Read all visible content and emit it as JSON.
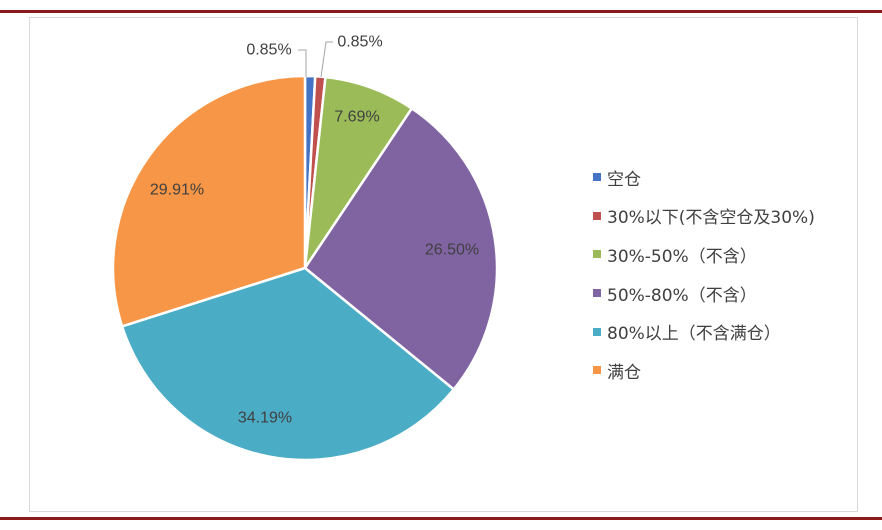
{
  "chart_data": {
    "type": "pie",
    "slices": [
      {
        "label": "空仓",
        "value": 0.85,
        "value_label": "0.85%",
        "color": "#4472c4"
      },
      {
        "label": "30%以下(不含空仓及30%)",
        "value": 0.85,
        "value_label": "0.85%",
        "color": "#c0504d"
      },
      {
        "label": "30%-50%（不含）",
        "value": 7.69,
        "value_label": "7.69%",
        "color": "#9bbb59"
      },
      {
        "label": "50%-80%（不含）",
        "value": 26.5,
        "value_label": "26.50%",
        "color": "#8064a2"
      },
      {
        "label": "80%以上（不含满仓）",
        "value": 34.19,
        "value_label": "34.19%",
        "color": "#4bacc6"
      },
      {
        "label": "满仓",
        "value": 29.91,
        "value_label": "29.91%",
        "color": "#f79646"
      }
    ],
    "start_angle_deg": 0,
    "direction": "clockwise",
    "legend_position": "right"
  }
}
